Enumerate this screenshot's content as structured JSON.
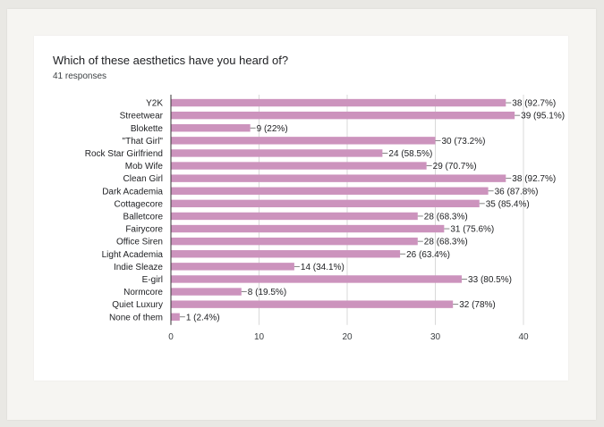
{
  "header": {
    "title": "Which of these aesthetics have you heard of?",
    "subtitle": "41 responses"
  },
  "colors": {
    "bar": "#cc93bd",
    "grid": "#d9d9d9",
    "axis": "#333333"
  },
  "chart_data": {
    "type": "bar",
    "orientation": "horizontal",
    "title": "Which of these aesthetics have you heard of?",
    "subtitle": "41 responses",
    "categories": [
      "Y2K",
      "Streetwear",
      "Blokette",
      "\"That Girl\"",
      "Rock Star Girlfriend",
      "Mob Wife",
      "Clean Girl",
      "Dark Academia",
      "Cottagecore",
      "Balletcore",
      "Fairycore",
      "Office Siren",
      "Light Academia",
      "Indie Sleaze",
      "E-girl",
      "Normcore",
      "Quiet Luxury",
      "None of them"
    ],
    "values": [
      38,
      39,
      9,
      30,
      24,
      29,
      38,
      36,
      35,
      28,
      31,
      28,
      26,
      14,
      33,
      8,
      32,
      1
    ],
    "data_labels": [
      "38 (92.7%)",
      "39 (95.1%)",
      "9 (22%)",
      "30 (73.2%)",
      "24 (58.5%)",
      "29 (70.7%)",
      "38 (92.7%)",
      "36 (87.8%)",
      "35 (85.4%)",
      "28 (68.3%)",
      "31 (75.6%)",
      "28 (68.3%)",
      "26 (63.4%)",
      "14 (34.1%)",
      "33 (80.5%)",
      "8 (19.5%)",
      "32 (78%)",
      "1 (2.4%)"
    ],
    "xticks": [
      0,
      10,
      20,
      30,
      40
    ],
    "xlim": [
      0,
      40
    ],
    "xlabel": "",
    "ylabel": "",
    "grid": "vertical"
  }
}
